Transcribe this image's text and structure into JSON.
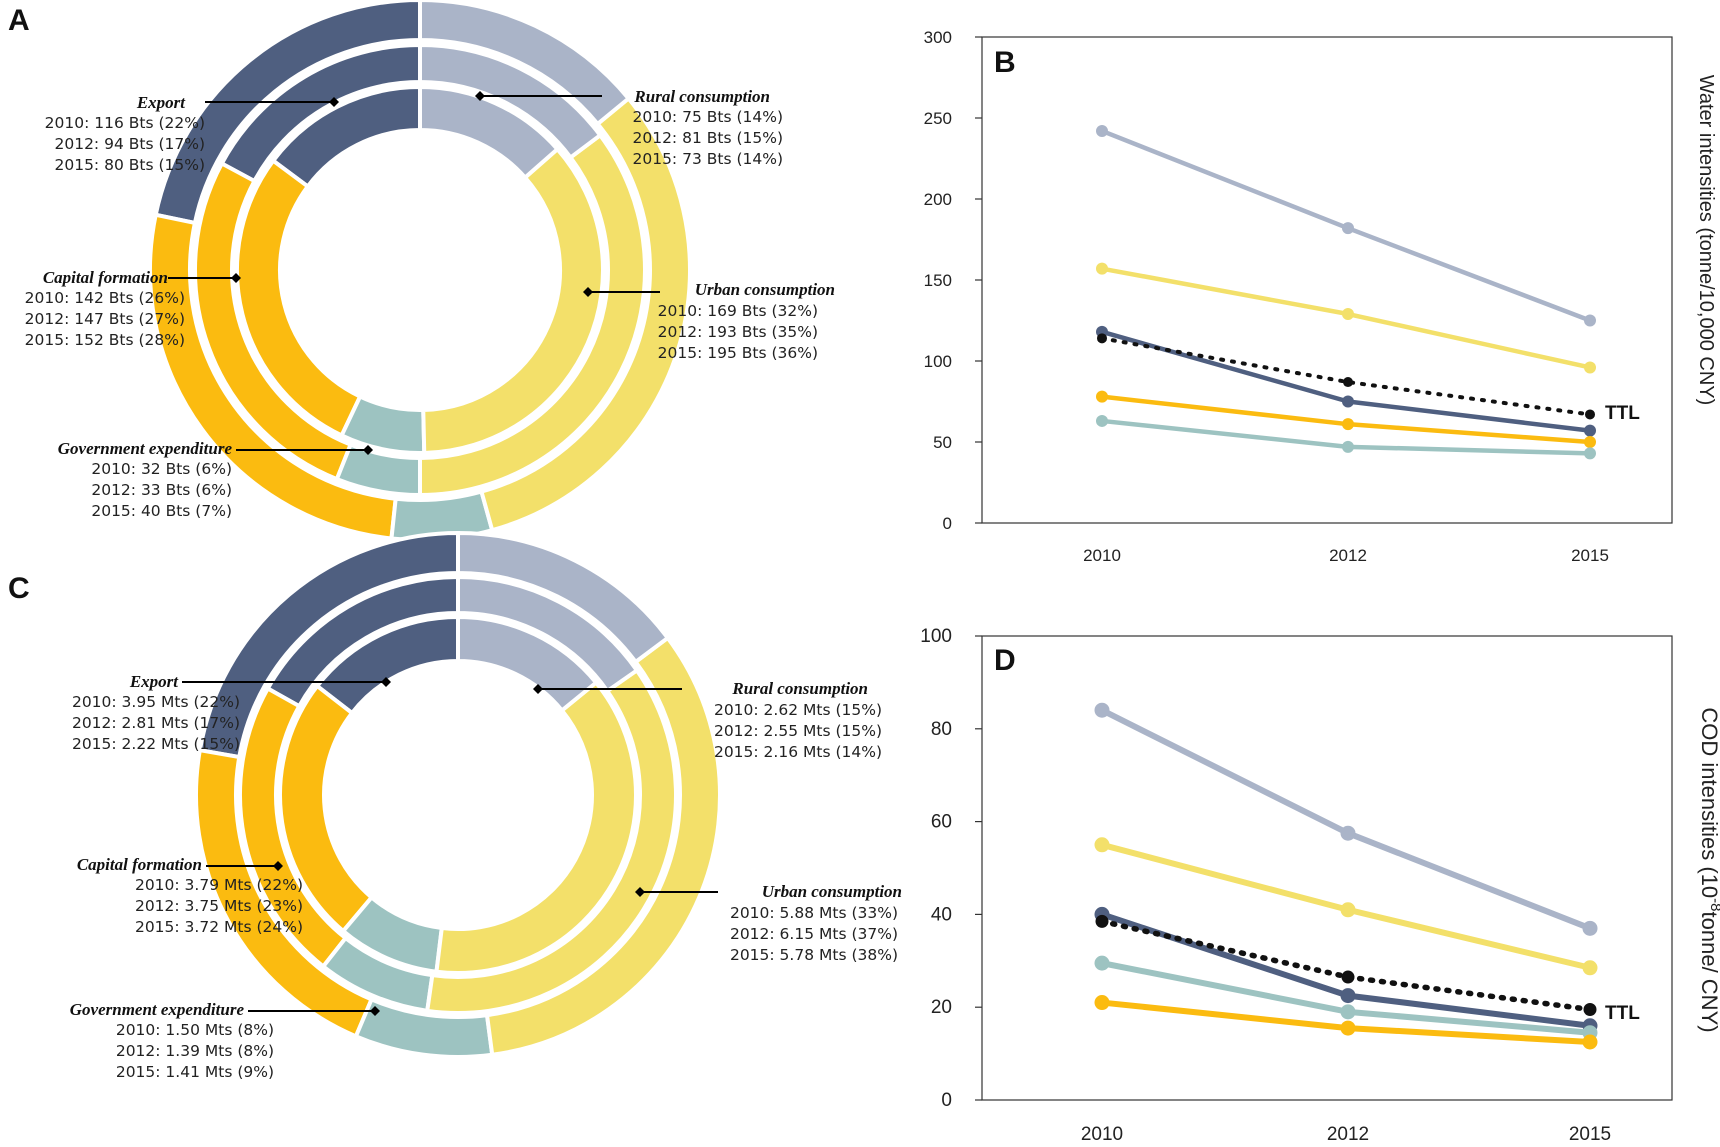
{
  "colors": {
    "export": "#4f5f80",
    "rural": "#aab4c8",
    "urban": "#f3e06a",
    "government": "#9dc3c1",
    "capital": "#fbbb10",
    "ttl": "#111111"
  },
  "chart_data": [
    {
      "panel": "A",
      "type": "pie",
      "rings": [
        "2010",
        "2012",
        "2015"
      ],
      "segments": [
        {
          "key": "export",
          "name": "Export",
          "lines": [
            "2010: 116 Bts (22%)",
            "2012: 94 Bts (17%)",
            "2015: 80 Bts (15%)"
          ],
          "values": [
            116,
            94,
            80
          ],
          "shares": [
            22,
            17,
            15
          ]
        },
        {
          "key": "rural",
          "name": "Rural consumption",
          "lines": [
            "2010: 75 Bts (14%)",
            "2012: 81 Bts (15%)",
            "2015: 73 Bts (14%)"
          ],
          "values": [
            75,
            81,
            73
          ],
          "shares": [
            14,
            15,
            14
          ]
        },
        {
          "key": "urban",
          "name": "Urban consumption",
          "lines": [
            "2010: 169 Bts (32%)",
            "2012: 193 Bts (35%)",
            "2015: 195 Bts (36%)"
          ],
          "values": [
            169,
            193,
            195
          ],
          "shares": [
            32,
            35,
            36
          ]
        },
        {
          "key": "government",
          "name": "Government expenditure",
          "lines": [
            "2010: 32 Bts (6%)",
            "2012: 33 Bts (6%)",
            "2015: 40 Bts (7%)"
          ],
          "values": [
            32,
            33,
            40
          ],
          "shares": [
            6,
            6,
            7
          ]
        },
        {
          "key": "capital",
          "name": "Capital formation",
          "lines": [
            "2010: 142 Bts (26%)",
            "2012: 147 Bts (27%)",
            "2015: 152 Bts (28%)"
          ],
          "values": [
            142,
            147,
            152
          ],
          "shares": [
            26,
            27,
            28
          ]
        }
      ]
    },
    {
      "panel": "B",
      "type": "line",
      "x": [
        "2010",
        "2012",
        "2015"
      ],
      "ylabel": "Water intensities (tonne/10,000 CNY)",
      "ylim": [
        0,
        300
      ],
      "yticks": [
        "0",
        "50",
        "100",
        "150",
        "200",
        "250",
        "300"
      ],
      "series": [
        {
          "key": "rural",
          "values": [
            242,
            182,
            125
          ]
        },
        {
          "key": "urban",
          "values": [
            157,
            129,
            96
          ]
        },
        {
          "key": "export",
          "values": [
            118,
            75,
            57
          ]
        },
        {
          "key": "capital",
          "values": [
            78,
            61,
            50
          ]
        },
        {
          "key": "government",
          "values": [
            63,
            47,
            43
          ]
        },
        {
          "key": "ttl",
          "name": "TTL",
          "dotted": true,
          "values": [
            114,
            87,
            67
          ]
        }
      ]
    },
    {
      "panel": "C",
      "type": "pie",
      "rings": [
        "2010",
        "2012",
        "2015"
      ],
      "segments": [
        {
          "key": "export",
          "name": "Export",
          "lines": [
            "2010: 3.95 Mts (22%)",
            "2012: 2.81 Mts (17%)",
            "2015: 2.22 Mts (15%)"
          ],
          "values": [
            3.95,
            2.81,
            2.22
          ],
          "shares": [
            22,
            17,
            15
          ]
        },
        {
          "key": "rural",
          "name": "Rural consumption",
          "lines": [
            "2010: 2.62 Mts (15%)",
            "2012: 2.55 Mts (15%)",
            "2015: 2.16 Mts (14%)"
          ],
          "values": [
            2.62,
            2.55,
            2.16
          ],
          "shares": [
            15,
            15,
            14
          ]
        },
        {
          "key": "urban",
          "name": "Urban consumption",
          "lines": [
            "2010: 5.88 Mts (33%)",
            "2012: 6.15 Mts (37%)",
            "2015: 5.78 Mts (38%)"
          ],
          "values": [
            5.88,
            6.15,
            5.78
          ],
          "shares": [
            33,
            37,
            38
          ]
        },
        {
          "key": "government",
          "name": "Government expenditure",
          "lines": [
            "2010: 1.50 Mts (8%)",
            "2012: 1.39 Mts (8%)",
            "2015: 1.41 Mts (9%)"
          ],
          "values": [
            1.5,
            1.39,
            1.41
          ],
          "shares": [
            8,
            8,
            9
          ]
        },
        {
          "key": "capital",
          "name": "Capital formation",
          "lines": [
            "2010: 3.79 Mts (22%)",
            "2012: 3.75 Mts (23%)",
            "2015: 3.72 Mts (24%)"
          ],
          "values": [
            3.79,
            3.75,
            3.72
          ],
          "shares": [
            22,
            23,
            24
          ]
        }
      ]
    },
    {
      "panel": "D",
      "type": "line",
      "x": [
        "2010",
        "2012",
        "2015"
      ],
      "ylabel": "COD intensities (10-8tonne/ CNY)",
      "ylabel_parts": {
        "before": "COD intensities  (10",
        "sup": "-8",
        "after": "tonne/ CNY)"
      },
      "ylim": [
        0,
        100
      ],
      "yticks": [
        "0",
        "20",
        "40",
        "60",
        "80",
        "100"
      ],
      "series": [
        {
          "key": "rural",
          "values": [
            84,
            57.5,
            37
          ]
        },
        {
          "key": "urban",
          "values": [
            55,
            41,
            28.5
          ]
        },
        {
          "key": "export",
          "values": [
            40,
            22.5,
            16
          ]
        },
        {
          "key": "government",
          "values": [
            29.5,
            19,
            14.5
          ]
        },
        {
          "key": "capital",
          "values": [
            21,
            15.5,
            12.5
          ]
        },
        {
          "key": "ttl",
          "name": "TTL",
          "dotted": true,
          "values": [
            38.5,
            26.5,
            19.5
          ]
        }
      ]
    }
  ]
}
